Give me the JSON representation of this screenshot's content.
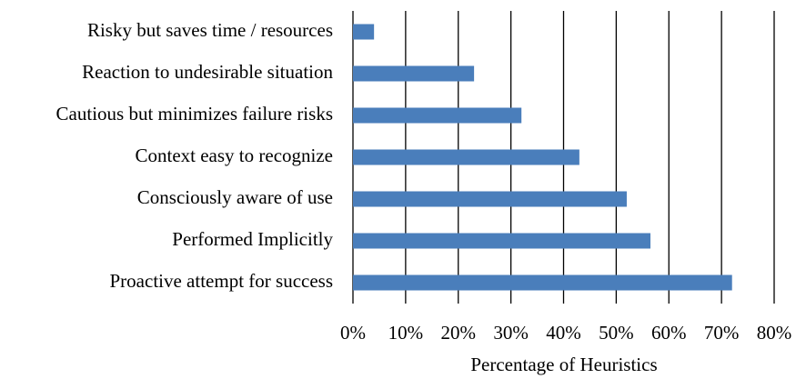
{
  "chart_data": {
    "type": "barh",
    "categories": [
      "Risky but saves time / resources",
      "Reaction to undesirable situation",
      "Cautious but minimizes failure risks",
      "Context easy to recognize",
      "Consciously aware of use",
      "Performed Implicitly",
      "Proactive attempt for success"
    ],
    "values": [
      4,
      23,
      32,
      43,
      52,
      56.5,
      72
    ],
    "color": "#4a7ebb",
    "xlabel": "Percentage of Heuristics",
    "xlim": [
      0,
      80
    ],
    "xticks": [
      {
        "value": 0,
        "label": "0%"
      },
      {
        "value": 10,
        "label": "10%"
      },
      {
        "value": 20,
        "label": "20%"
      },
      {
        "value": 30,
        "label": "30%"
      },
      {
        "value": 40,
        "label": "40%"
      },
      {
        "value": 50,
        "label": "50%"
      },
      {
        "value": 60,
        "label": "60%"
      },
      {
        "value": 70,
        "label": "70%"
      },
      {
        "value": 80,
        "label": "80%"
      }
    ],
    "grid": true
  }
}
